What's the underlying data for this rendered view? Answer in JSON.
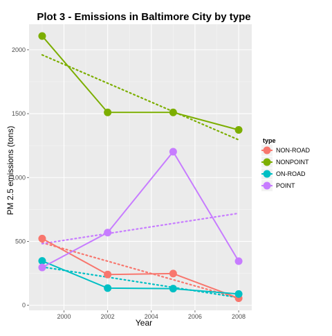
{
  "chart_data": {
    "type": "line",
    "title": "Plot 3 - Emissions in Baltimore City by type",
    "xlabel": "Year",
    "ylabel": "PM 2.5 emissions (tons)",
    "xlim": [
      1998.4,
      2008.6
    ],
    "ylim": [
      -40,
      2200
    ],
    "x_ticks": [
      2000,
      2002,
      2004,
      2006,
      2008
    ],
    "y_ticks": [
      0,
      500,
      1000,
      1500,
      2000
    ],
    "grid": true,
    "legend": {
      "title": "type",
      "placement": "right"
    },
    "x": [
      1999,
      2002,
      2005,
      2008
    ],
    "series": [
      {
        "name": "NON-ROAD",
        "color": "#F8766D",
        "values": [
          522,
          241,
          248,
          55
        ],
        "trend": [
          490,
          55
        ]
      },
      {
        "name": "NONPOINT",
        "color": "#7CAE00",
        "values": [
          2108,
          1510,
          1510,
          1373
        ],
        "trend": [
          1960,
          1295
        ]
      },
      {
        "name": "ON-ROAD",
        "color": "#00BFC4",
        "values": [
          347,
          134,
          130,
          88
        ],
        "trend": [
          300,
          60
        ]
      },
      {
        "name": "POINT",
        "color": "#C77CFF",
        "values": [
          296,
          569,
          1202,
          345
        ],
        "trend": [
          482,
          720
        ]
      }
    ]
  }
}
